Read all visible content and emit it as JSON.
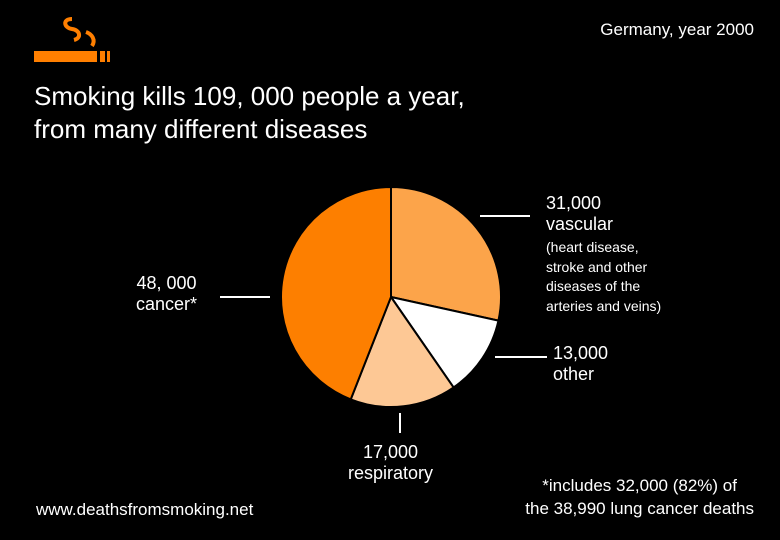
{
  "header": {
    "location_year": "Germany, year 2000"
  },
  "title": {
    "line1": "Smoking kills 109, 000 people a year,",
    "line2": "from many different diseases"
  },
  "logo": {
    "icon": "cigarette-smoke-icon",
    "color": "#ff7f00"
  },
  "labels": {
    "vascular_value": "31,000",
    "vascular_name": "vascular",
    "vascular_note": [
      "(heart disease,",
      "stroke and other",
      "diseases of the",
      "arteries and veins)"
    ],
    "other_value": "13,000",
    "other_name": "other",
    "respiratory_value": "17,000",
    "respiratory_name": "respiratory",
    "cancer_value": "48, 000",
    "cancer_name": "cancer*"
  },
  "footer": {
    "url": "www.deathsfromsmoking.net",
    "footnote_line1": "*includes 32,000 (82%) of",
    "footnote_line2": "the 38,990 lung cancer deaths"
  },
  "chart_data": {
    "type": "pie",
    "title": "Smoking kills 109, 000 people a year, from many different diseases",
    "start_angle_deg": 0,
    "direction": "clockwise",
    "slices": [
      {
        "name": "vascular",
        "value": 31000,
        "color": "#fca44a"
      },
      {
        "name": "other",
        "value": 13000,
        "color": "#ffffff"
      },
      {
        "name": "respiratory",
        "value": 17000,
        "color": "#fdc895"
      },
      {
        "name": "cancer",
        "value": 48000,
        "color": "#fd7f00"
      }
    ],
    "total": 109000
  }
}
